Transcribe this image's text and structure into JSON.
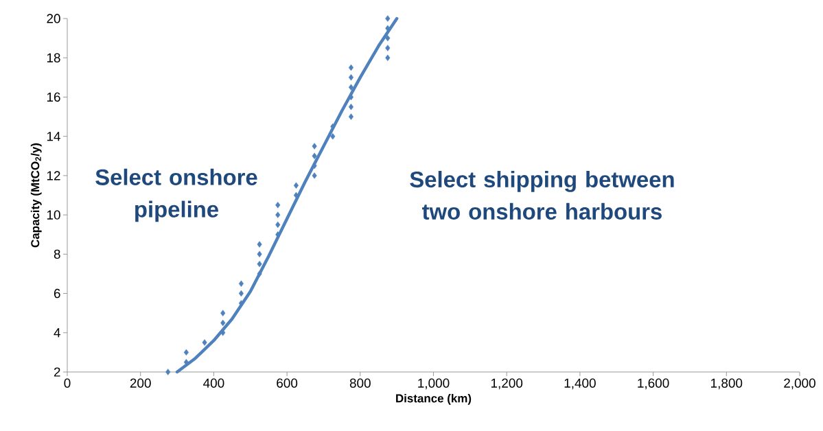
{
  "chart_data": {
    "type": "scatter",
    "xlabel": "Distance (km)",
    "ylabel": "Capacity (MtCO$_{2}$/y)",
    "annotations": [
      "Select onshore pipeline",
      "Select shipping between two onshore harbours"
    ],
    "xlim": [
      0,
      2000
    ],
    "ylim": [
      2,
      20
    ],
    "xticks": [
      0,
      200,
      400,
      600,
      800,
      {
        "value": 1000,
        "label": "1,000"
      },
      {
        "value": 1200,
        "label": "1,200"
      },
      {
        "value": 1400,
        "label": "1,400"
      },
      {
        "value": 1600,
        "label": "1,600"
      },
      {
        "value": 1800,
        "label": "1,800"
      },
      {
        "value": 2000,
        "label": "2,000"
      }
    ],
    "yticks": [
      2,
      4,
      6,
      8,
      10,
      12,
      14,
      16,
      18,
      20
    ],
    "marker": "diamond",
    "grid": false,
    "series": [
      {
        "color": "#4f81bd",
        "x": [
          275,
          325,
          325,
          375,
          425,
          425,
          425,
          475,
          475,
          475,
          525,
          525,
          525,
          525,
          575,
          575,
          575,
          575,
          625,
          625,
          675,
          675,
          675,
          675,
          725,
          725,
          775,
          775,
          775,
          775,
          775,
          775,
          875,
          875,
          875,
          875,
          875
        ],
        "values": [
          2,
          3,
          2.5,
          3.5,
          5,
          4.5,
          4,
          6.5,
          6,
          5.5,
          8.5,
          8,
          7.5,
          7,
          10.5,
          10,
          9.5,
          9,
          11.5,
          11,
          13.5,
          13,
          12.5,
          12,
          14.5,
          14,
          17.5,
          17,
          16.5,
          16,
          15.5,
          15,
          20,
          19.5,
          19,
          18.5,
          18
        ]
      },
      {
        "type": "line",
        "color": "#4f81bd",
        "marker": "none",
        "x": [
          300,
          350,
          400,
          450,
          500,
          550,
          600,
          650,
          700,
          750,
          800,
          850,
          900
        ],
        "values": [
          2,
          2.7,
          3.6,
          4.7,
          6.1,
          7.9,
          9.8,
          11.7,
          13.5,
          15.3,
          17.0,
          18.6,
          20
        ]
      }
    ]
  }
}
